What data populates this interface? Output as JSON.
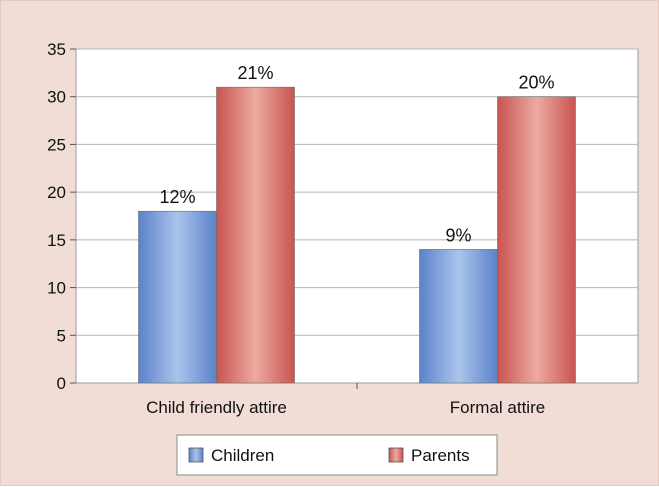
{
  "chart_data": {
    "type": "bar",
    "categories": [
      "Child friendly attire",
      "Formal attire"
    ],
    "series": [
      {
        "name": "Children",
        "values": [
          18,
          14
        ],
        "labels": [
          "12%",
          "9%"
        ],
        "color": "#5b82c9"
      },
      {
        "name": "Parents",
        "values": [
          31,
          30
        ],
        "labels": [
          "21%",
          "20%"
        ],
        "color": "#c95450"
      }
    ],
    "ylim": [
      0,
      35
    ],
    "yticks": [
      "0",
      "5",
      "10",
      "15",
      "20",
      "25",
      "30",
      "35"
    ],
    "grid": true,
    "legend": "bottom"
  },
  "colors": {
    "background": "#f2ddd6",
    "plot_background": "#ffffff",
    "gridline": "#b5b5b5"
  }
}
